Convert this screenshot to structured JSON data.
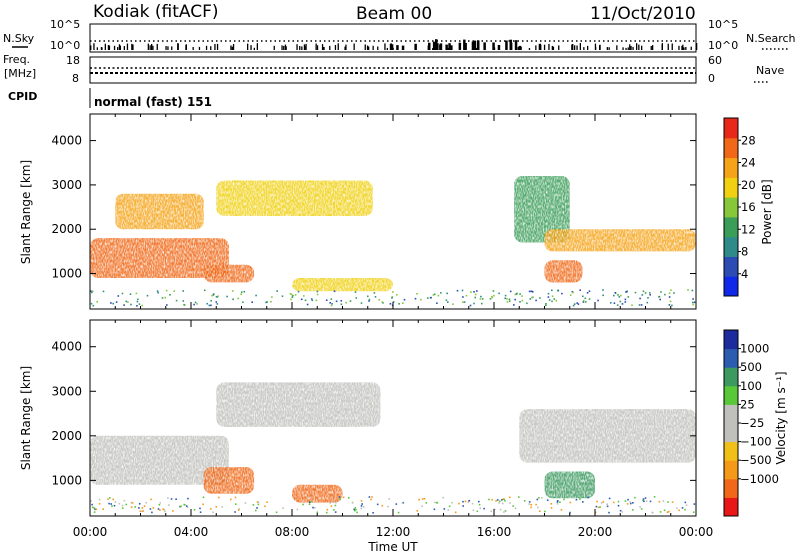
{
  "header": {
    "station": "Kodiak (fitACF)",
    "beam": "Beam 00",
    "date": "11/Oct/2010"
  },
  "aux_panels": {
    "nsky_label": "N.Sky",
    "nsearch_label": "N.Search",
    "nsky_ticks": [
      "10^5",
      "10^0"
    ],
    "nsearch_ticks": [
      "10^5",
      "10^0"
    ],
    "freq_label_1": "Freq.",
    "freq_label_2": "[MHz]",
    "freq_ticks": [
      "18",
      "8"
    ],
    "nave_label": "Nave",
    "nave_ticks": [
      "60",
      "0"
    ],
    "cpid_label": "CPID",
    "cpid_value": "normal (fast) 151"
  },
  "colors": {
    "power": [
      "#1028e8",
      "#2c4cb4",
      "#2f8a8a",
      "#3b9e58",
      "#86c83a",
      "#f0d010",
      "#f5a318",
      "#f06818",
      "#e82818"
    ],
    "velocity": [
      "#e81818",
      "#f06818",
      "#f59a18",
      "#f0c018",
      "#c0c0bc",
      "#c0c0bc",
      "#58c838",
      "#3c9a60",
      "#2c5cb0",
      "#1c2c9c"
    ]
  },
  "chart_data": [
    {
      "type": "heatmap",
      "title": "",
      "xlabel": "Time UT",
      "ylabel": "Slant Range [km]",
      "xlim": [
        0,
        24
      ],
      "ylim": [
        200,
        4600
      ],
      "x_ticks": [
        "00:00",
        "04:00",
        "08:00",
        "12:00",
        "16:00",
        "20:00",
        "00:00"
      ],
      "y_ticks": [
        "1000",
        "2000",
        "3000",
        "4000"
      ],
      "colorbar": {
        "label": "Power [dB]",
        "range": [
          0,
          32
        ],
        "ticks": [
          "4",
          "8",
          "12",
          "16",
          "20",
          "24",
          "28"
        ]
      },
      "echo_regions": [
        {
          "t": [
            0,
            5.5
          ],
          "range_km": [
            900,
            1800
          ],
          "value_db": 28
        },
        {
          "t": [
            4.5,
            6.5
          ],
          "range_km": [
            800,
            1200
          ],
          "value_db": 28
        },
        {
          "t": [
            1,
            4.5
          ],
          "range_km": [
            2000,
            2800
          ],
          "value_db": 22
        },
        {
          "t": [
            5,
            11.2
          ],
          "range_km": [
            2300,
            3100
          ],
          "value_db": 18
        },
        {
          "t": [
            8,
            12
          ],
          "range_km": [
            600,
            900
          ],
          "value_db": 20
        },
        {
          "t": [
            16.8,
            19
          ],
          "range_km": [
            1700,
            3200
          ],
          "value_db": 14
        },
        {
          "t": [
            18,
            24
          ],
          "range_km": [
            1500,
            2000
          ],
          "value_db": 24
        },
        {
          "t": [
            18,
            19.5
          ],
          "range_km": [
            800,
            1300
          ],
          "value_db": 28
        }
      ]
    },
    {
      "type": "heatmap",
      "title": "",
      "xlabel": "Time UT",
      "ylabel": "Slant Range [km]",
      "xlim": [
        0,
        24
      ],
      "ylim": [
        200,
        4600
      ],
      "x_ticks": [
        "00:00",
        "04:00",
        "08:00",
        "12:00",
        "16:00",
        "20:00",
        "00:00"
      ],
      "y_ticks": [
        "1000",
        "2000",
        "3000",
        "4000"
      ],
      "colorbar": {
        "label": "Velocity [m s⁻¹]",
        "range": [
          -1200,
          1200
        ],
        "ticks": [
          "1000",
          "500",
          "100",
          "25",
          "−25",
          "−100",
          "−500",
          "−1000"
        ]
      },
      "echo_regions": [
        {
          "t": [
            0,
            5.5
          ],
          "range_km": [
            900,
            2000
          ],
          "value_ms": 0
        },
        {
          "t": [
            5,
            11.5
          ],
          "range_km": [
            2200,
            3200
          ],
          "value_ms": 0
        },
        {
          "t": [
            4.5,
            6.5
          ],
          "range_km": [
            700,
            1300
          ],
          "value_ms": -200
        },
        {
          "t": [
            8,
            10
          ],
          "range_km": [
            500,
            900
          ],
          "value_ms": -300
        },
        {
          "t": [
            17,
            24
          ],
          "range_km": [
            1400,
            2600
          ],
          "value_ms": 0
        },
        {
          "t": [
            18,
            20
          ],
          "range_km": [
            600,
            1200
          ],
          "value_ms": 150
        }
      ]
    }
  ]
}
